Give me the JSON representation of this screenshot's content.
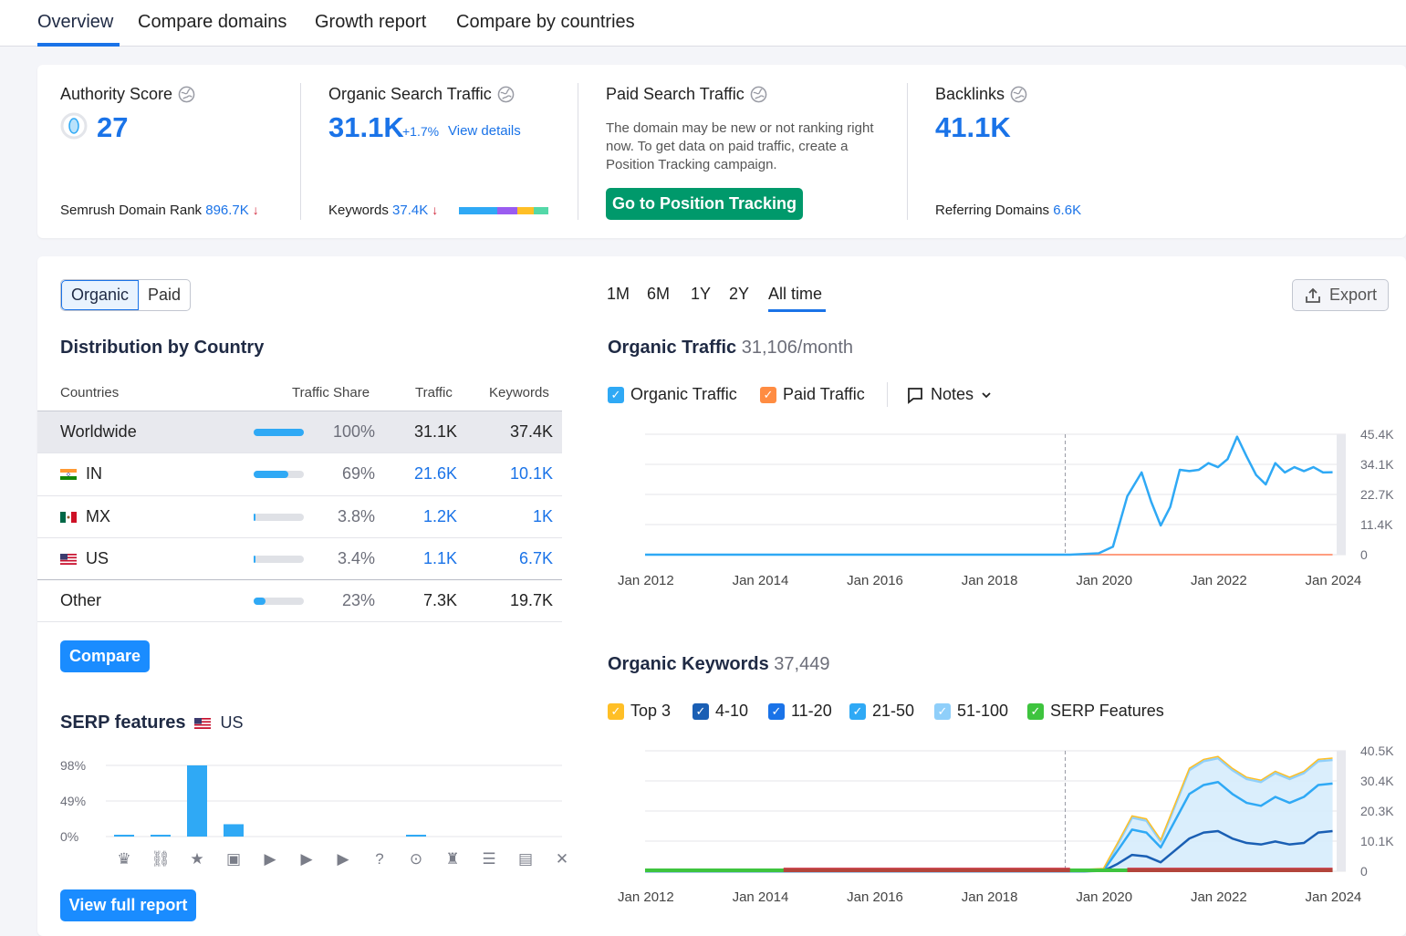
{
  "tabs": [
    "Overview",
    "Compare domains",
    "Growth report",
    "Compare by countries"
  ],
  "metrics": {
    "authority": {
      "title": "Authority Score",
      "value": "27",
      "rank_label": "Semrush Domain Rank",
      "rank_value": "896.7K"
    },
    "organic": {
      "title": "Organic Search Traffic",
      "value": "31.1K",
      "change": "+1.7%",
      "details_link": "View details",
      "keywords_label": "Keywords",
      "keywords_value": "37.4K"
    },
    "paid": {
      "title": "Paid Search Traffic",
      "description": "The domain may be new or not ranking right now. To get data on paid traffic, create a Position Tracking campaign.",
      "button": "Go to Position Tracking"
    },
    "backlinks": {
      "title": "Backlinks",
      "value": "41.1K",
      "ref_label": "Referring Domains",
      "ref_value": "6.6K"
    }
  },
  "toggle": {
    "organic": "Organic",
    "paid": "Paid"
  },
  "distribution": {
    "title": "Distribution by Country",
    "headers": {
      "countries": "Countries",
      "share": "Traffic Share",
      "traffic": "Traffic",
      "keywords": "Keywords"
    },
    "rows": [
      {
        "country": "Worldwide",
        "share": "100%",
        "traffic": "31.1K",
        "keywords": "37.4K",
        "fraction": 1.0
      },
      {
        "country": "IN",
        "share": "69%",
        "traffic": "21.6K",
        "keywords": "10.1K",
        "fraction": 0.69
      },
      {
        "country": "MX",
        "share": "3.8%",
        "traffic": "1.2K",
        "keywords": "1K",
        "fraction": 0.038
      },
      {
        "country": "US",
        "share": "3.4%",
        "traffic": "1.1K",
        "keywords": "6.7K",
        "fraction": 0.034
      },
      {
        "country": "Other",
        "share": "23%",
        "traffic": "7.3K",
        "keywords": "19.7K",
        "fraction": 0.23
      }
    ],
    "compare_button": "Compare"
  },
  "serp": {
    "title": "SERP features",
    "country": "US",
    "yticks": [
      "98%",
      "49%",
      "0%"
    ],
    "values": [
      1,
      1,
      98,
      17,
      0,
      0,
      0,
      0,
      1,
      0,
      0,
      0,
      0
    ],
    "icons": [
      "crown-icon",
      "link-icon",
      "star-icon",
      "image-icon",
      "video-icon",
      "video-icon",
      "video-icon",
      "faq-icon",
      "location-icon",
      "graduation-icon",
      "document-icon",
      "briefcase-icon",
      "x-icon"
    ],
    "button": "View full report"
  },
  "periods": [
    "1M",
    "6M",
    "1Y",
    "2Y",
    "All time"
  ],
  "export_label": "Export",
  "organic_traffic": {
    "title": "Organic Traffic",
    "subtitle": "31,106/month",
    "legend": {
      "organic": "Organic Traffic",
      "paid": "Paid Traffic",
      "notes": "Notes"
    },
    "yticks": [
      "45.4K",
      "34.1K",
      "22.7K",
      "11.4K",
      "0"
    ],
    "xticks": [
      "Jan 2012",
      "Jan 2014",
      "Jan 2016",
      "Jan 2018",
      "Jan 2020",
      "Jan 2022",
      "Jan 2024"
    ]
  },
  "organic_keywords": {
    "title": "Organic Keywords",
    "subtitle": "37,449",
    "legend": [
      "Top 3",
      "4-10",
      "11-20",
      "21-50",
      "51-100",
      "SERP Features"
    ],
    "legend_colors": [
      "#ffbf26",
      "#1a5fb4",
      "#1a73e8",
      "#2fa9f5",
      "#8fcffa",
      "#3ec43e"
    ],
    "yticks": [
      "40.5K",
      "30.4K",
      "20.3K",
      "10.1K",
      "0"
    ],
    "xticks": [
      "Jan 2012",
      "Jan 2014",
      "Jan 2016",
      "Jan 2018",
      "Jan 2020",
      "Jan 2022",
      "Jan 2024"
    ]
  },
  "chart_data": [
    {
      "type": "line",
      "title": "Organic Traffic",
      "xlabel": "",
      "ylabel": "",
      "ylim": [
        0,
        45400
      ],
      "x": [
        "2012-01",
        "2019-01",
        "2019-06",
        "2019-12",
        "2020-03",
        "2020-06",
        "2020-09",
        "2020-11",
        "2021-01",
        "2021-03",
        "2021-05",
        "2021-07",
        "2021-09",
        "2021-11",
        "2022-01",
        "2022-03",
        "2022-05",
        "2022-07",
        "2022-09",
        "2022-11",
        "2023-01",
        "2023-03",
        "2023-05",
        "2023-07",
        "2023-09",
        "2023-11",
        "2024-01"
      ],
      "series": [
        {
          "name": "Organic Traffic",
          "values": [
            0,
            0,
            0,
            500,
            3000,
            22000,
            31000,
            20000,
            11000,
            18000,
            32000,
            31500,
            32000,
            34500,
            33000,
            36000,
            44500,
            37000,
            30000,
            26500,
            34500,
            31000,
            33000,
            31500,
            33000,
            31000,
            31100
          ]
        },
        {
          "name": "Paid Traffic",
          "values": [
            0,
            0,
            0,
            0,
            0,
            0,
            0,
            0,
            0,
            0,
            0,
            0,
            0,
            0,
            0,
            0,
            0,
            0,
            0,
            0,
            0,
            0,
            0,
            0,
            0,
            0,
            0
          ]
        }
      ]
    },
    {
      "type": "area",
      "title": "Organic Keywords",
      "ylim": [
        0,
        40500
      ],
      "x": [
        "2012-01",
        "2019-01",
        "2019-09",
        "2020-01",
        "2020-04",
        "2020-07",
        "2020-10",
        "2021-01",
        "2021-04",
        "2021-07",
        "2021-10",
        "2022-01",
        "2022-04",
        "2022-07",
        "2022-10",
        "2023-01",
        "2023-04",
        "2023-07",
        "2023-10",
        "2024-01"
      ],
      "series": [
        {
          "name": "51-100",
          "values": [
            0,
            0,
            0,
            300,
            9000,
            18000,
            17000,
            10000,
            22000,
            34000,
            37000,
            38000,
            34000,
            31000,
            30000,
            33000,
            31000,
            33000,
            37000,
            37449
          ]
        },
        {
          "name": "21-50",
          "values": [
            0,
            0,
            0,
            200,
            7000,
            14000,
            13000,
            8000,
            17000,
            26000,
            29000,
            30000,
            26000,
            23000,
            22000,
            25000,
            23000,
            25000,
            29000,
            29500
          ]
        },
        {
          "name": "4-10",
          "values": [
            0,
            0,
            0,
            100,
            2500,
            5500,
            5000,
            3000,
            7000,
            11000,
            13000,
            13500,
            11000,
            9500,
            9000,
            10000,
            9000,
            9500,
            13000,
            13500
          ]
        }
      ]
    },
    {
      "type": "bar",
      "title": "SERP features",
      "categories": [
        "crown",
        "link",
        "star",
        "image",
        "video",
        "video",
        "video",
        "faq",
        "location",
        "graduation",
        "document",
        "briefcase",
        "x"
      ],
      "values": [
        1,
        1,
        98,
        17,
        0,
        0,
        0,
        0,
        1,
        0,
        0,
        0,
        0
      ],
      "ylim": [
        0,
        98
      ]
    }
  ]
}
